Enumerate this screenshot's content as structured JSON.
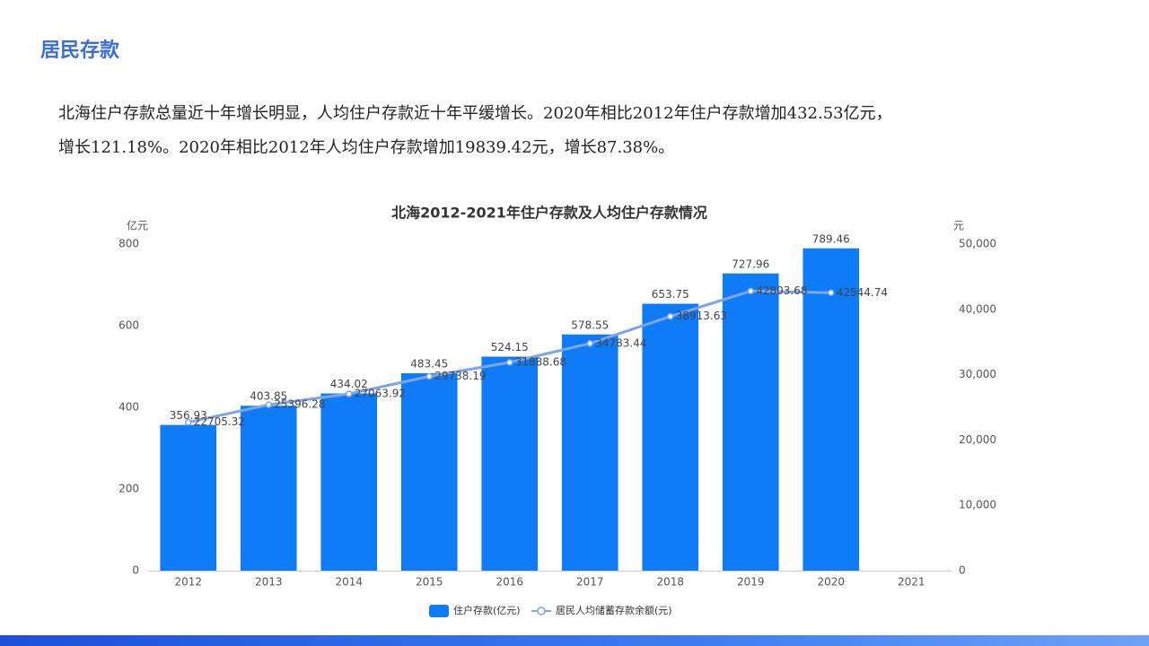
{
  "header": {
    "title": "居民存款"
  },
  "paragraph": {
    "lines": [
      "北海住户存款总量近十年增长明显，人均住户存款近十年平缓增长。2020年相比2012年住户存款增加432.53亿元，",
      "增长121.18%。2020年相比2012年人均住户存款增加19839.42元，增长87.38%。"
    ]
  },
  "chart_data": {
    "type": "bar-line",
    "title": "北海2012-2021年住户存款及人均住户存款情况",
    "y_label": "亿元",
    "y2_label": "元",
    "categories": [
      "2012",
      "2013",
      "2014",
      "2015",
      "2016",
      "2017",
      "2018",
      "2019",
      "2020",
      "2021"
    ],
    "series": [
      {
        "name": "住户存款(亿元)",
        "type": "bar",
        "color": "#0f7bf7",
        "axis": "y",
        "values": [
          356.93,
          403.85,
          434.02,
          483.45,
          524.15,
          578.55,
          653.75,
          727.96,
          789.46,
          null
        ]
      },
      {
        "name": "居民人均储蓄存款余额(元)",
        "type": "line",
        "color": "#7ea6e6",
        "axis": "y2",
        "values": [
          22705.32,
          25396.28,
          27063.92,
          29738.19,
          31888.68,
          34783.44,
          38913.63,
          42803.68,
          42544.74,
          null
        ]
      }
    ],
    "ylim": [
      0,
      800
    ],
    "yticks": [
      0,
      200,
      400,
      600,
      800
    ],
    "y2lim": [
      0,
      50000
    ],
    "y2ticks": [
      0,
      {
        "value": 10000,
        "label": "10,000"
      },
      {
        "value": 20000,
        "label": "20,000"
      },
      {
        "value": 30000,
        "label": "30,000"
      },
      {
        "value": 40000,
        "label": "40,000"
      },
      {
        "value": 50000,
        "label": "50,000"
      }
    ],
    "legend": "bottom"
  }
}
